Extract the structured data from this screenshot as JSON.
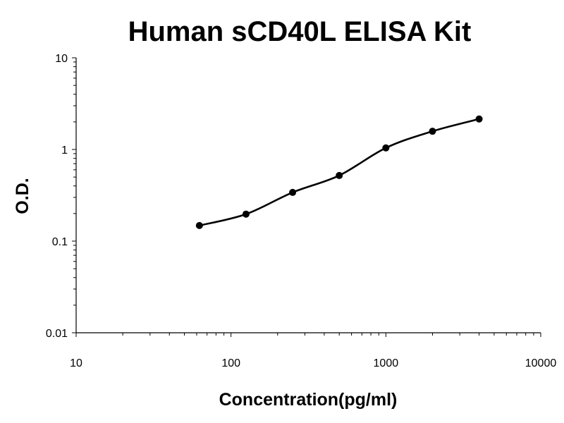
{
  "chart_data": {
    "type": "scatter",
    "title": "Human sCD40L ELISA Kit",
    "xlabel": "Concentration(pg/ml)",
    "ylabel": "O.D.",
    "x_scale": "log",
    "y_scale": "log",
    "xlim": [
      10,
      10000
    ],
    "ylim": [
      0.01,
      10
    ],
    "x_ticks": [
      {
        "value": 10,
        "label": "10"
      },
      {
        "value": 100,
        "label": "100"
      },
      {
        "value": 1000,
        "label": "1000"
      },
      {
        "value": 10000,
        "label": "10000"
      }
    ],
    "y_ticks": [
      {
        "value": 0.01,
        "label": "0.01"
      },
      {
        "value": 0.1,
        "label": "0.1"
      },
      {
        "value": 1,
        "label": "1"
      },
      {
        "value": 10,
        "label": "10"
      }
    ],
    "grid": false,
    "legend": "none",
    "series": [
      {
        "x": [
          62.5,
          125,
          250,
          500,
          1000,
          2000,
          4000
        ],
        "y": [
          0.148,
          0.197,
          0.34,
          0.52,
          1.04,
          1.58,
          2.15
        ],
        "show_markers": true,
        "show_fit_curve": true,
        "color": "#000000"
      }
    ]
  }
}
